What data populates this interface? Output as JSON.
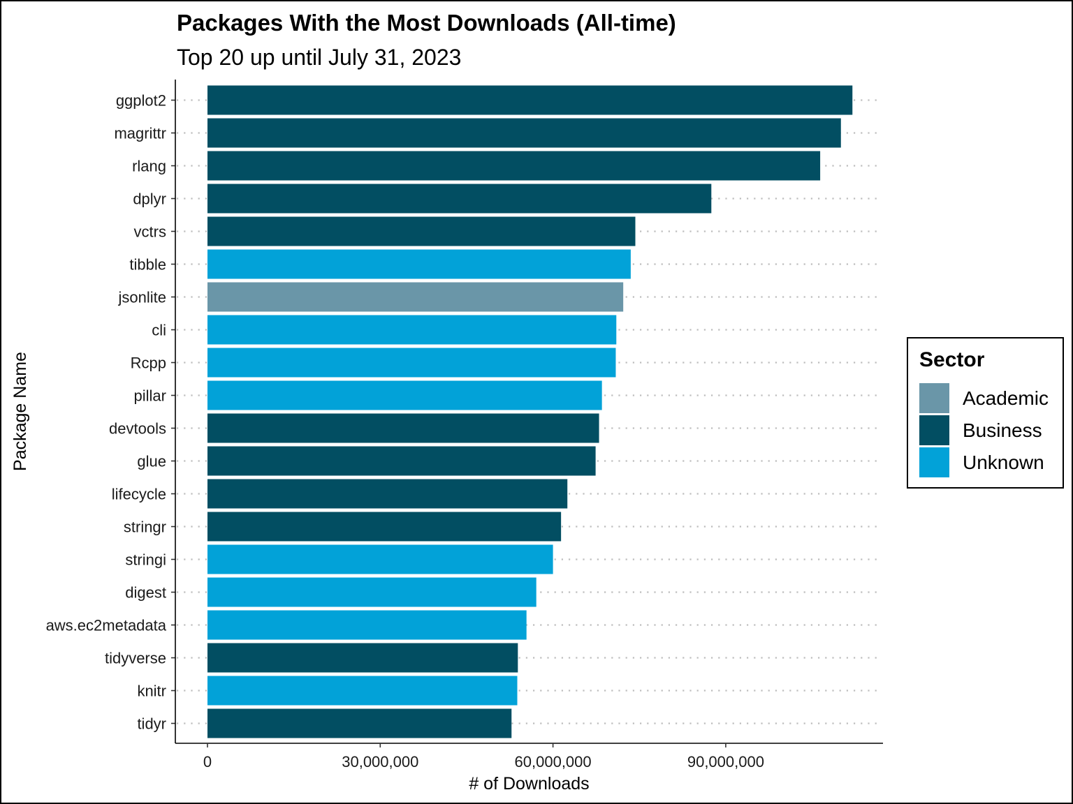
{
  "chart_data": {
    "type": "bar",
    "orientation": "horizontal",
    "title": "Packages With the Most Downloads (All-time)",
    "subtitle": "Top 20 up until July 31, 2023",
    "xlabel": "# of Downloads",
    "ylabel": "Package Name",
    "xlim": [
      0,
      117000000
    ],
    "x_ticks": [
      0,
      30000000,
      60000000,
      90000000
    ],
    "x_tick_labels": [
      "0",
      "30,000,000",
      "60,000,000",
      "90,000,000"
    ],
    "grid": "horizontal dotted",
    "legend_position": "right",
    "legend_title": "Sector",
    "sectors": [
      {
        "name": "Academic",
        "color": "#6a96a8"
      },
      {
        "name": "Business",
        "color": "#024e62"
      },
      {
        "name": "Unknown",
        "color": "#02a2d8"
      }
    ],
    "categories": [
      "ggplot2",
      "magrittr",
      "rlang",
      "dplyr",
      "vctrs",
      "tibble",
      "jsonlite",
      "cli",
      "Rcpp",
      "pillar",
      "devtools",
      "glue",
      "lifecycle",
      "stringr",
      "stringi",
      "digest",
      "aws.ec2metadata",
      "tidyverse",
      "knitr",
      "tidyr"
    ],
    "values": [
      112000000,
      110000000,
      106400000,
      87500000,
      74300000,
      73500000,
      72200000,
      71000000,
      70900000,
      68500000,
      68000000,
      67400000,
      62500000,
      61400000,
      60000000,
      57100000,
      55400000,
      53900000,
      53800000,
      52800000
    ],
    "sector_of_each": [
      "Business",
      "Business",
      "Business",
      "Business",
      "Business",
      "Unknown",
      "Academic",
      "Unknown",
      "Unknown",
      "Unknown",
      "Business",
      "Business",
      "Business",
      "Business",
      "Unknown",
      "Unknown",
      "Unknown",
      "Business",
      "Unknown",
      "Business"
    ]
  }
}
